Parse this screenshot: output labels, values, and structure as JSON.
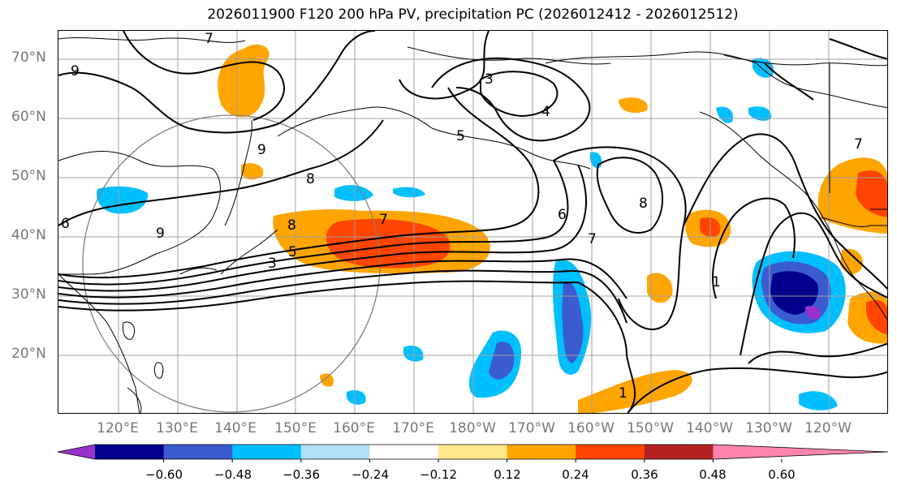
{
  "title": "2026011900 F120 200 hPa PV, precipitation PC (2026012412 - 2026012512)",
  "latitude_labels": [
    "70°N",
    "60°N",
    "50°N",
    "40°N",
    "30°N",
    "20°N"
  ],
  "longitude_labels": [
    "120°E",
    "130°E",
    "140°E",
    "150°E",
    "160°E",
    "170°E",
    "180°W",
    "170°W",
    "160°W",
    "150°W",
    "140°W",
    "130°W",
    "120°W"
  ],
  "contour_labels": [
    "9",
    "7",
    "3",
    "4",
    "5",
    "9",
    "8",
    "8",
    "7",
    "5",
    "6",
    "7",
    "8",
    "1",
    "1",
    "7",
    "3",
    "9",
    "6"
  ],
  "colorbar": {
    "tick_labels": [
      "−0.60",
      "−0.48",
      "−0.36",
      "−0.24",
      "−0.12",
      "0.12",
      "0.24",
      "0.36",
      "0.48",
      "0.60"
    ],
    "colors": [
      "#9932cc",
      "#00008b",
      "#3b5bd0",
      "#00bfff",
      "#b0e0fa",
      "#ffffff",
      "#ffe98a",
      "#ffa500",
      "#ff4500",
      "#b22222",
      "#ff85b0"
    ]
  }
}
